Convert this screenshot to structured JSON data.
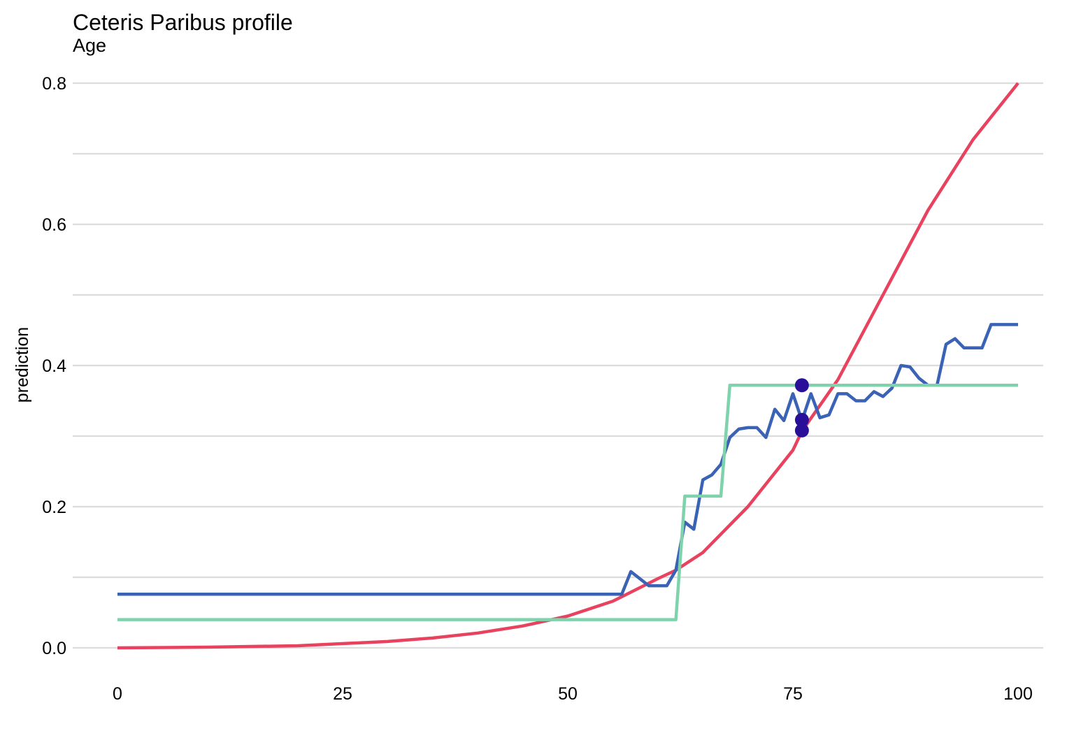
{
  "chart_data": {
    "type": "line",
    "title": "Ceteris Paribus profile",
    "subtitle": "Age",
    "xlabel": "",
    "ylabel": "prediction",
    "xlim": [
      0,
      100
    ],
    "ylim": [
      0,
      0.8
    ],
    "x_ticks": [
      0,
      25,
      50,
      75,
      100
    ],
    "y_ticks": [
      0.0,
      0.2,
      0.4,
      0.6,
      0.8
    ],
    "y_tick_labels": [
      "0.0",
      "0.2",
      "0.4",
      "0.6",
      "0.8"
    ],
    "grid": "horizontal",
    "legend": "none",
    "series": [
      {
        "color": "#e8425f",
        "x": [
          0,
          10,
          20,
          30,
          35,
          40,
          45,
          50,
          55,
          60,
          62,
          65,
          70,
          75,
          76,
          80,
          85,
          90,
          95,
          100
        ],
        "y": [
          0.0,
          0.001,
          0.003,
          0.009,
          0.014,
          0.021,
          0.031,
          0.045,
          0.066,
          0.098,
          0.11,
          0.135,
          0.2,
          0.28,
          0.307,
          0.38,
          0.5,
          0.62,
          0.72,
          0.8
        ]
      },
      {
        "color": "#3a62b5",
        "x": [
          0,
          56,
          57,
          59,
          61,
          62,
          63,
          64,
          65,
          66,
          67,
          68,
          69,
          70,
          71,
          72,
          73,
          74,
          75,
          76,
          77,
          78,
          79,
          80,
          81,
          82,
          83,
          84,
          85,
          86,
          87,
          88,
          89,
          90,
          91,
          92,
          93,
          94,
          95,
          96,
          97,
          98,
          99,
          100
        ],
        "y": [
          0.076,
          0.076,
          0.108,
          0.088,
          0.088,
          0.11,
          0.178,
          0.168,
          0.238,
          0.245,
          0.26,
          0.298,
          0.31,
          0.312,
          0.312,
          0.298,
          0.338,
          0.322,
          0.36,
          0.322,
          0.36,
          0.326,
          0.33,
          0.36,
          0.36,
          0.35,
          0.35,
          0.363,
          0.356,
          0.368,
          0.4,
          0.398,
          0.382,
          0.372,
          0.372,
          0.43,
          0.438,
          0.425,
          0.425,
          0.425,
          0.458,
          0.458,
          0.458,
          0.458
        ]
      },
      {
        "color": "#7ed3ac",
        "x": [
          0,
          62,
          63,
          67,
          68,
          100
        ],
        "y": [
          0.04,
          0.04,
          0.215,
          0.215,
          0.372,
          0.372
        ]
      }
    ],
    "points": [
      {
        "x": 76,
        "y": 0.372,
        "color": "#2a0f99"
      },
      {
        "x": 76,
        "y": 0.323,
        "color": "#2a0f99"
      },
      {
        "x": 76,
        "y": 0.308,
        "color": "#2a0f99"
      }
    ]
  }
}
